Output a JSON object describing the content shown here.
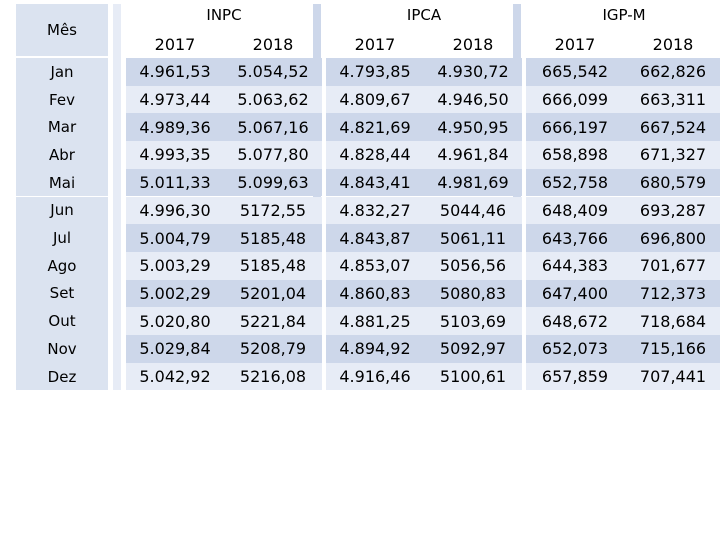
{
  "header": {
    "month_label": "Mês",
    "groups": [
      {
        "name": "INPC",
        "years": [
          "2017",
          "2018"
        ]
      },
      {
        "name": "IPCA",
        "years": [
          "2017",
          "2018"
        ]
      },
      {
        "name": "IGP-M",
        "years": [
          "2017",
          "2018"
        ]
      }
    ]
  },
  "rows": [
    {
      "month": "Jan",
      "values": [
        "4.961,53",
        "5.054,52",
        "4.793,85",
        "4.930,72",
        "665,542",
        "662,826"
      ]
    },
    {
      "month": "Fev",
      "values": [
        "4.973,44",
        "5.063,62",
        "4.809,67",
        "4.946,50",
        "666,099",
        "663,311"
      ]
    },
    {
      "month": "Mar",
      "values": [
        "4.989,36",
        "5.067,16",
        "4.821,69",
        "4.950,95",
        "666,197",
        "667,524"
      ]
    },
    {
      "month": "Abr",
      "values": [
        "4.993,35",
        "5.077,80",
        "4.828,44",
        "4.961,84",
        "658,898",
        "671,327"
      ]
    },
    {
      "month": "Mai",
      "values": [
        "5.011,33",
        "5.099,63",
        "4.843,41",
        "4.981,69",
        "652,758",
        "680,579"
      ]
    },
    {
      "month": "Jun",
      "values": [
        "4.996,30",
        "5172,55",
        "4.832,27",
        "5044,46",
        "648,409",
        "693,287"
      ]
    },
    {
      "month": "Jul",
      "values": [
        "5.004,79",
        "5185,48",
        "4.843,87",
        "5061,11",
        "643,766",
        "696,800"
      ]
    },
    {
      "month": "Ago",
      "values": [
        "5.003,29",
        "5185,48",
        "4.853,07",
        "5056,56",
        "644,383",
        "701,677"
      ]
    },
    {
      "month": "Set",
      "values": [
        "5.002,29",
        "5201,04",
        "4.860,83",
        "5080,83",
        "647,400",
        "712,373"
      ]
    },
    {
      "month": "Out",
      "values": [
        "5.020,80",
        "5221,84",
        "4.881,25",
        "5103,69",
        "648,672",
        "718,684"
      ]
    },
    {
      "month": "Nov",
      "values": [
        "5.029,84",
        "5208,79",
        "4.894,92",
        "5092,97",
        "652,073",
        "715,166"
      ]
    },
    {
      "month": "Dez",
      "values": [
        "5.042,92",
        "5216,08",
        "4.916,46",
        "5100,61",
        "657,859",
        "707,441"
      ]
    }
  ],
  "colors": {
    "header_fill": "#dbe3f0",
    "row_dark": "#cdd7ea",
    "row_light": "#e7ecf6",
    "border": "#ffffff"
  }
}
